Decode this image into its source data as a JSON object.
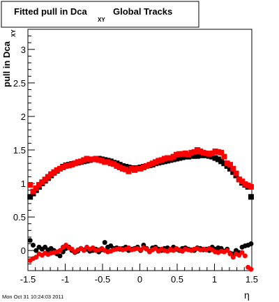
{
  "chart_data": {
    "type": "scatter",
    "title": "Fitted pull in Dca",
    "title_subscript": "XY",
    "title_suffix": "Global Tracks",
    "ylabel": "pull in Dca",
    "ylabel_subscript": "XY",
    "xlabel": "η",
    "xlim": [
      -1.5,
      1.5
    ],
    "ylim": [
      -0.3,
      3.3
    ],
    "x_ticks": [
      -1.5,
      -1,
      -0.5,
      0,
      0.5,
      1,
      1.5
    ],
    "x_tick_labels": [
      "-1.5",
      "-1",
      "-0.5",
      "0",
      "0.5",
      "1",
      "1.5"
    ],
    "y_ticks": [
      0,
      0.5,
      1,
      1.5,
      2,
      2.5,
      3
    ],
    "y_tick_labels": [
      "0",
      "0.5",
      "1",
      "1.5",
      "2",
      "2.5",
      "3"
    ],
    "grid": false,
    "series": [
      {
        "color": "#000000",
        "marker": "square",
        "x": [
          -1.47,
          -1.43,
          -1.39,
          -1.35,
          -1.31,
          -1.27,
          -1.23,
          -1.19,
          -1.15,
          -1.11,
          -1.07,
          -1.03,
          -0.99,
          -0.95,
          -0.91,
          -0.87,
          -0.83,
          -0.79,
          -0.75,
          -0.71,
          -0.67,
          -0.63,
          -0.59,
          -0.55,
          -0.51,
          -0.47,
          -0.43,
          -0.39,
          -0.35,
          -0.31,
          -0.27,
          -0.23,
          -0.19,
          -0.15,
          -0.11,
          -0.07,
          -0.03,
          0.01,
          0.05,
          0.09,
          0.13,
          0.17,
          0.21,
          0.25,
          0.29,
          0.33,
          0.37,
          0.41,
          0.45,
          0.49,
          0.53,
          0.57,
          0.61,
          0.65,
          0.69,
          0.73,
          0.77,
          0.81,
          0.85,
          0.89,
          0.93,
          0.97,
          1.01,
          1.05,
          1.09,
          1.13,
          1.17,
          1.21,
          1.25,
          1.29,
          1.33,
          1.37,
          1.41,
          1.45,
          1.49
        ],
        "y": [
          0.8,
          0.85,
          0.9,
          0.95,
          1.0,
          1.04,
          1.08,
          1.12,
          1.16,
          1.19,
          1.22,
          1.25,
          1.27,
          1.28,
          1.29,
          1.3,
          1.31,
          1.32,
          1.33,
          1.34,
          1.35,
          1.36,
          1.36,
          1.37,
          1.36,
          1.35,
          1.34,
          1.33,
          1.31,
          1.3,
          1.28,
          1.26,
          1.25,
          1.24,
          1.23,
          1.23,
          1.23,
          1.24,
          1.25,
          1.26,
          1.27,
          1.28,
          1.3,
          1.31,
          1.32,
          1.33,
          1.34,
          1.35,
          1.36,
          1.37,
          1.38,
          1.39,
          1.4,
          1.4,
          1.41,
          1.41,
          1.41,
          1.42,
          1.42,
          1.42,
          1.41,
          1.4,
          1.38,
          1.36,
          1.33,
          1.3,
          1.26,
          1.22,
          1.17,
          1.12,
          1.06,
          1.01,
          0.98,
          0.95,
          0.8
        ]
      },
      {
        "color": "#ff0000",
        "marker": "square",
        "x": [
          -1.47,
          -1.43,
          -1.39,
          -1.35,
          -1.31,
          -1.27,
          -1.23,
          -1.19,
          -1.15,
          -1.11,
          -1.07,
          -1.03,
          -0.99,
          -0.95,
          -0.91,
          -0.87,
          -0.83,
          -0.79,
          -0.75,
          -0.71,
          -0.67,
          -0.63,
          -0.59,
          -0.55,
          -0.51,
          -0.47,
          -0.43,
          -0.39,
          -0.35,
          -0.31,
          -0.27,
          -0.23,
          -0.19,
          -0.15,
          -0.11,
          -0.07,
          -0.03,
          0.01,
          0.05,
          0.09,
          0.13,
          0.17,
          0.21,
          0.25,
          0.29,
          0.33,
          0.37,
          0.41,
          0.45,
          0.49,
          0.53,
          0.57,
          0.61,
          0.65,
          0.69,
          0.73,
          0.77,
          0.81,
          0.85,
          0.89,
          0.93,
          0.97,
          1.01,
          1.05,
          1.09,
          1.13,
          1.17,
          1.21,
          1.25,
          1.29,
          1.33,
          1.37,
          1.41,
          1.45,
          1.49
        ],
        "y": [
          0.98,
          0.88,
          0.93,
          0.98,
          1.02,
          1.06,
          1.1,
          1.14,
          1.17,
          1.2,
          1.22,
          1.24,
          1.26,
          1.27,
          1.28,
          1.3,
          1.32,
          1.33,
          1.35,
          1.37,
          1.36,
          1.36,
          1.37,
          1.35,
          1.34,
          1.32,
          1.32,
          1.3,
          1.29,
          1.26,
          1.24,
          1.22,
          1.21,
          1.18,
          1.22,
          1.2,
          1.22,
          1.22,
          1.24,
          1.26,
          1.28,
          1.3,
          1.32,
          1.34,
          1.35,
          1.37,
          1.38,
          1.38,
          1.4,
          1.43,
          1.44,
          1.44,
          1.45,
          1.43,
          1.46,
          1.47,
          1.5,
          1.48,
          1.46,
          1.45,
          1.44,
          1.45,
          1.48,
          1.47,
          1.46,
          1.4,
          1.3,
          1.28,
          1.22,
          1.15,
          1.06,
          1.03,
          0.99,
          0.97,
          0.95
        ]
      },
      {
        "color": "#000000",
        "marker": "circle",
        "x": [
          -1.47,
          -1.43,
          -1.39,
          -1.35,
          -1.31,
          -1.27,
          -1.23,
          -1.19,
          -1.15,
          -1.11,
          -1.07,
          -1.03,
          -0.99,
          -0.95,
          -0.91,
          -0.87,
          -0.83,
          -0.79,
          -0.75,
          -0.71,
          -0.67,
          -0.63,
          -0.59,
          -0.55,
          -0.51,
          -0.47,
          -0.43,
          -0.39,
          -0.35,
          -0.31,
          -0.27,
          -0.23,
          -0.19,
          -0.15,
          -0.11,
          -0.07,
          -0.03,
          0.01,
          0.05,
          0.09,
          0.13,
          0.17,
          0.21,
          0.25,
          0.29,
          0.33,
          0.37,
          0.41,
          0.45,
          0.49,
          0.53,
          0.57,
          0.61,
          0.65,
          0.69,
          0.73,
          0.77,
          0.81,
          0.85,
          0.89,
          0.93,
          0.97,
          1.01,
          1.05,
          1.09,
          1.13,
          1.17,
          1.21,
          1.25,
          1.29,
          1.33,
          1.37,
          1.41,
          1.45,
          1.49
        ],
        "y": [
          0.15,
          0.08,
          0.0,
          0.05,
          0.02,
          0.05,
          0.01,
          0.03,
          0.0,
          -0.05,
          -0.08,
          -0.02,
          0.03,
          0.05,
          0.0,
          -0.03,
          -0.01,
          0.03,
          0.01,
          0.02,
          -0.01,
          0.0,
          0.02,
          -0.02,
          0.01,
          0.12,
          0.05,
          0.07,
          0.03,
          0.04,
          0.02,
          0.03,
          0.05,
          0.0,
          0.02,
          0.03,
          0.05,
          0.0,
          0.08,
          0.03,
          -0.01,
          0.04,
          0.05,
          0.02,
          0.0,
          0.03,
          0.04,
          0.01,
          0.05,
          0.02,
          0.0,
          0.03,
          0.04,
          0.02,
          0.01,
          0.0,
          0.04,
          0.03,
          0.01,
          0.02,
          0.0,
          0.05,
          0.02,
          0.04,
          0.03,
          -0.01,
          0.02,
          -0.04,
          -0.05,
          0.0,
          -0.03,
          0.05,
          0.07,
          0.08,
          0.1
        ]
      },
      {
        "color": "#ff0000",
        "marker": "circle",
        "x": [
          -1.47,
          -1.43,
          -1.39,
          -1.35,
          -1.31,
          -1.27,
          -1.23,
          -1.19,
          -1.15,
          -1.11,
          -1.07,
          -1.03,
          -0.99,
          -0.95,
          -0.91,
          -0.87,
          -0.83,
          -0.79,
          -0.75,
          -0.71,
          -0.67,
          -0.63,
          -0.59,
          -0.55,
          -0.51,
          -0.47,
          -0.43,
          -0.39,
          -0.35,
          -0.31,
          -0.27,
          -0.23,
          -0.19,
          -0.15,
          -0.11,
          -0.07,
          -0.03,
          0.01,
          0.05,
          0.09,
          0.13,
          0.17,
          0.21,
          0.25,
          0.29,
          0.33,
          0.37,
          0.41,
          0.45,
          0.49,
          0.53,
          0.57,
          0.61,
          0.65,
          0.69,
          0.73,
          0.77,
          0.81,
          0.85,
          0.89,
          0.93,
          0.97,
          1.01,
          1.05,
          1.09,
          1.13,
          1.17,
          1.21,
          1.25,
          1.29,
          1.33,
          1.37,
          1.41,
          1.45,
          1.49
        ],
        "y": [
          -0.15,
          -0.12,
          -0.1,
          -0.05,
          -0.07,
          -0.04,
          -0.06,
          -0.04,
          -0.03,
          -0.02,
          0.0,
          0.05,
          0.08,
          0.04,
          0.02,
          -0.02,
          0.01,
          0.03,
          0.0,
          0.05,
          0.02,
          0.04,
          0.0,
          0.01,
          0.03,
          0.0,
          -0.02,
          -0.01,
          0.01,
          0.02,
          0.03,
          0.01,
          0.02,
          0.04,
          0.01,
          0.02,
          0.03,
          0.01,
          0.04,
          0.02,
          -0.02,
          0.01,
          0.03,
          -0.01,
          0.02,
          0.0,
          -0.01,
          0.02,
          0.0,
          0.03,
          0.01,
          -0.01,
          0.02,
          0.01,
          0.0,
          0.02,
          0.03,
          0.01,
          0.02,
          0.01,
          0.03,
          0.01,
          -0.02,
          -0.03,
          -0.01,
          -0.02,
          0.0,
          -0.05,
          -0.1,
          -0.05,
          -0.07,
          -0.03,
          -0.08,
          -0.25,
          -0.28
        ]
      }
    ]
  },
  "footer": {
    "timestamp": "Mon Oct 31 10:24:03 2011"
  }
}
